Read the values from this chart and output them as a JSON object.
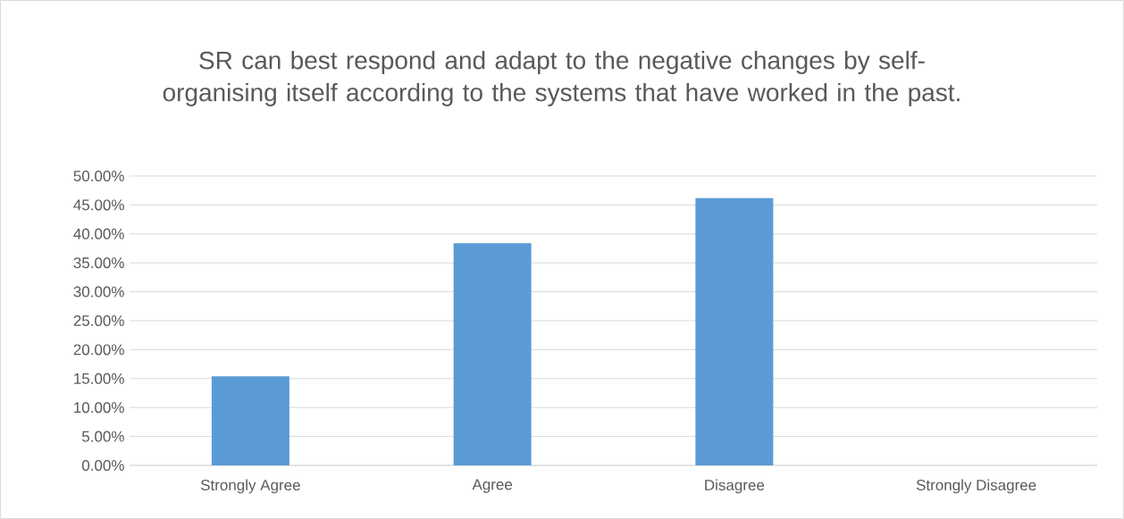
{
  "chart_data": {
    "type": "bar",
    "title": "SR can best respond and adapt to the negative changes by self-organising itself according to the systems that have worked in the past.",
    "categories": [
      "Strongly Agree",
      "Agree",
      "Disagree",
      "Strongly Disagree"
    ],
    "values": [
      15.4,
      38.4,
      46.2,
      0
    ],
    "color": "#5b9bd5",
    "ylim": [
      0,
      50
    ],
    "yticks": [
      {
        "value": 0,
        "label": "0.00%"
      },
      {
        "value": 5,
        "label": "5.00%"
      },
      {
        "value": 10,
        "label": "10.00%"
      },
      {
        "value": 15,
        "label": "15.00%"
      },
      {
        "value": 20,
        "label": "20.00%"
      },
      {
        "value": 25,
        "label": "25.00%"
      },
      {
        "value": 30,
        "label": "30.00%"
      },
      {
        "value": 35,
        "label": "35.00%"
      },
      {
        "value": 40,
        "label": "40.00%"
      },
      {
        "value": 45,
        "label": "45.00%"
      },
      {
        "value": 50,
        "label": "50.00%"
      }
    ],
    "grid": "y"
  }
}
